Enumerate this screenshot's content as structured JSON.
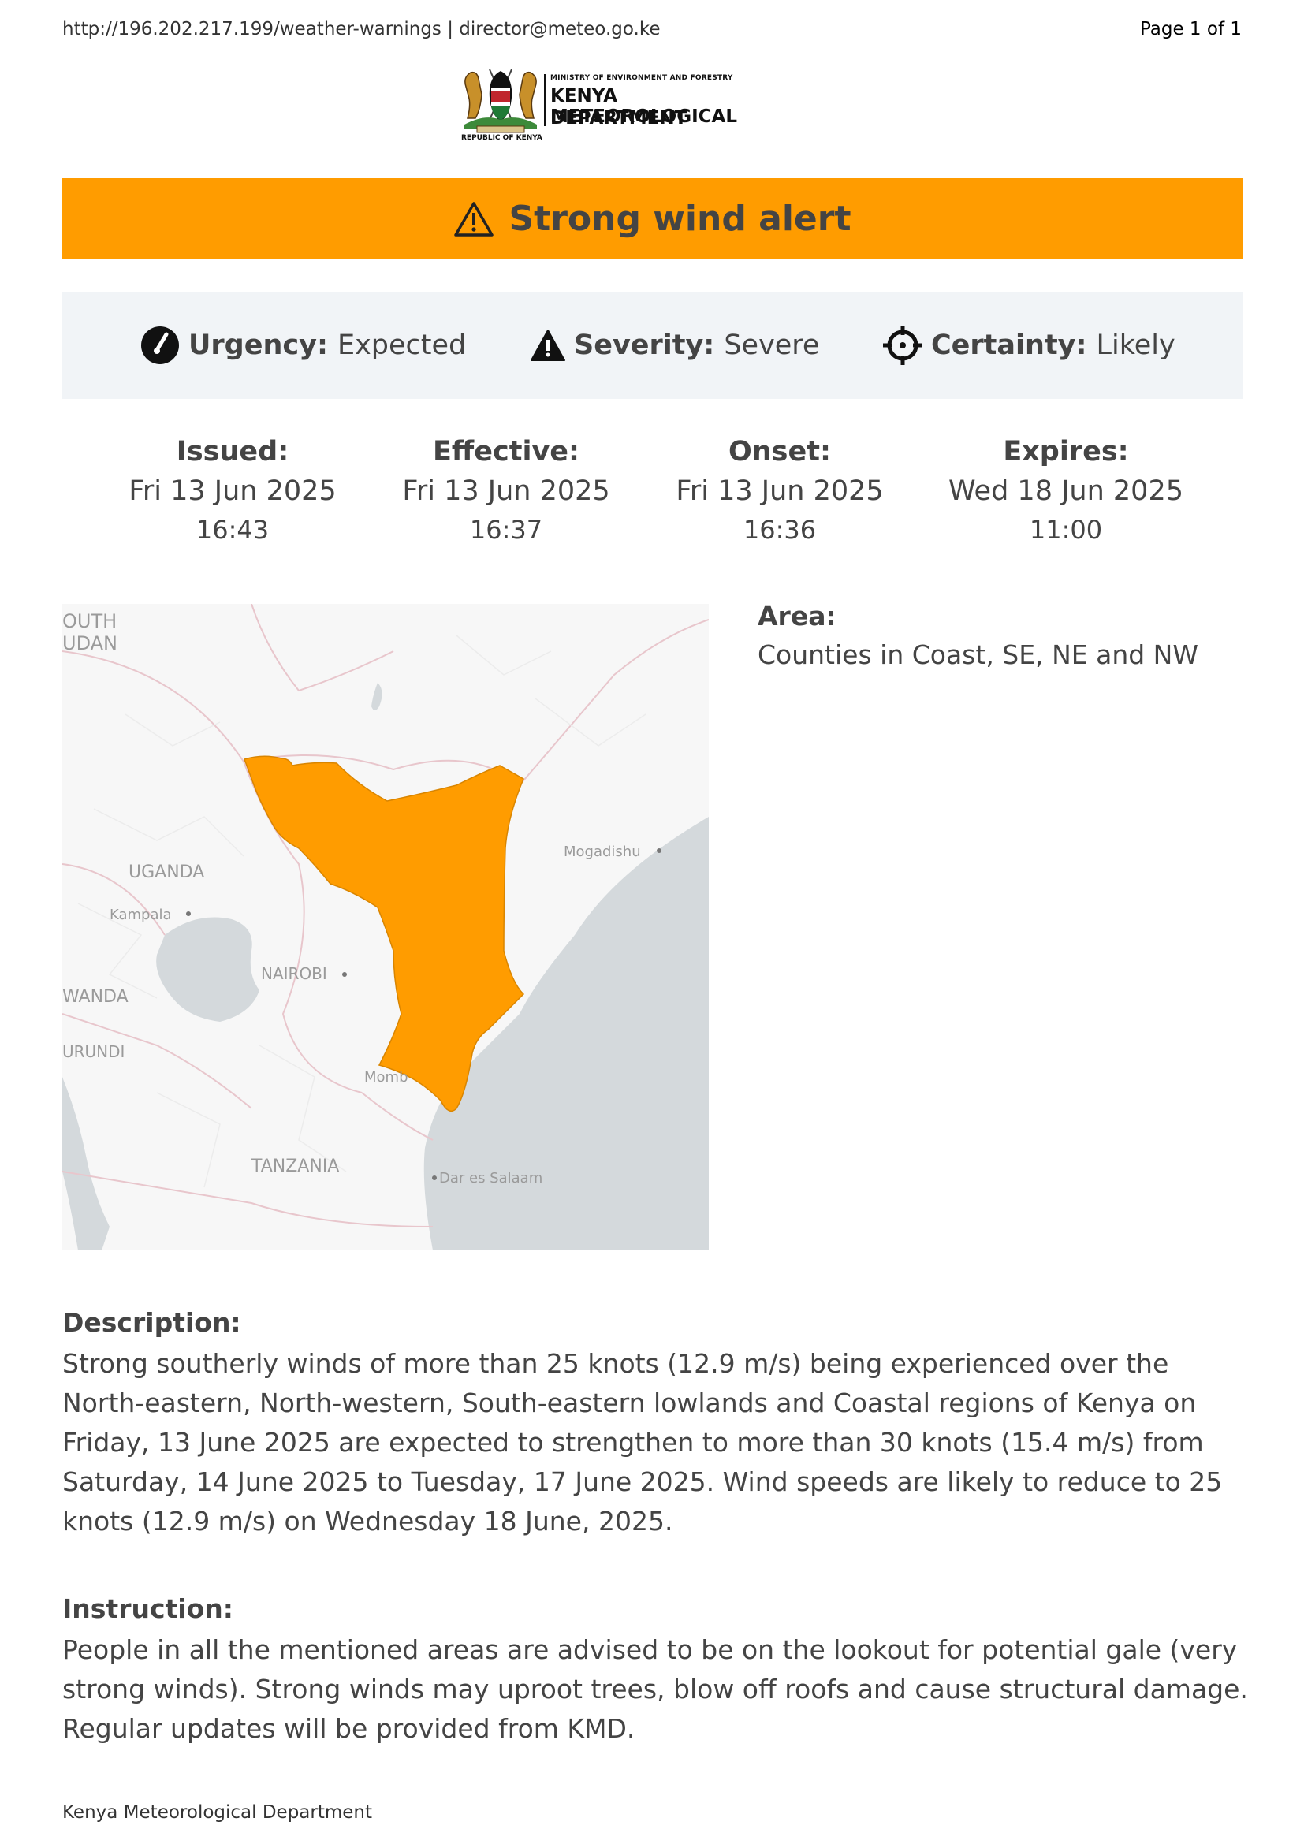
{
  "header": {
    "url_line": "http://196.202.217.199/weather-warnings  | director@meteo.go.ke",
    "page": "Page 1 of 1"
  },
  "logo": {
    "ministry": "MINISTRY OF ENVIRONMENT AND FORESTRY",
    "line1": "KENYA METEOROLOGICAL",
    "line2": "DEPARTMENT",
    "republic": "REPUBLIC OF KENYA"
  },
  "alert": {
    "title": "Strong wind alert",
    "color": "#ff9c00",
    "icon": "warning-triangle-icon"
  },
  "meta": {
    "urgency_label": "Urgency:",
    "urgency_value": "Expected",
    "severity_label": "Severity:",
    "severity_value": "Severe",
    "certainty_label": "Certainty:",
    "certainty_value": "Likely"
  },
  "times": [
    {
      "label": "Issued:",
      "date": "Fri 13 Jun 2025",
      "time": "16:43"
    },
    {
      "label": "Effective:",
      "date": "Fri 13 Jun 2025",
      "time": "16:37"
    },
    {
      "label": "Onset:",
      "date": "Fri 13 Jun 2025",
      "time": "16:36"
    },
    {
      "label": "Expires:",
      "date": "Wed 18 Jun 2025",
      "time": "11:00"
    }
  ],
  "map": {
    "labels": {
      "south_sudan_1": "OUTH",
      "south_sudan_2": "UDAN",
      "uganda": "UGANDA",
      "kampala": "Kampala",
      "rwanda": "WANDA",
      "burundi": "URUNDI",
      "nairobi": "NAIROBI",
      "mombasa": "Momb",
      "tanzania": "TANZANIA",
      "dar": "Dar es Salaam",
      "mogadishu": "Mogadishu"
    }
  },
  "area": {
    "label": "Area:",
    "value": "Counties in Coast, SE, NE and NW"
  },
  "description": {
    "label": "Description:",
    "text": "Strong southerly winds of more than 25 knots (12.9 m/s) being experienced over the North-eastern, North-western, South-eastern lowlands and Coastal regions of Kenya on Friday, 13 June 2025 are expected to strengthen to more than 30 knots (15.4 m/s) from Saturday, 14 June 2025 to Tuesday, 17 June 2025. Wind speeds are likely to reduce to 25 knots (12.9 m/s) on Wednesday 18 June, 2025."
  },
  "instruction": {
    "label": "Instruction:",
    "text": "People in all the mentioned areas are advised to be on the lookout for potential gale (very strong winds). Strong winds may uproot trees, blow off roofs and cause structural damage. Regular updates will be provided from KMD."
  },
  "footer": "Kenya Meteorological Department"
}
